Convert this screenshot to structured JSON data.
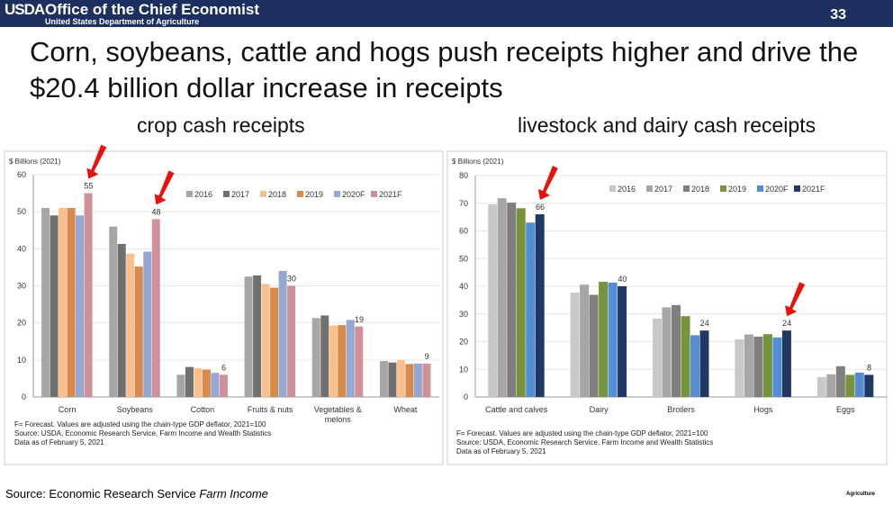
{
  "header": {
    "logo": "USDA",
    "office": "Office of the Chief Economist",
    "department": "United States Department of Agriculture",
    "page_number": "33"
  },
  "title": "Corn, soybeans, cattle and hogs push receipts higher and drive the $20.4 billion dollar increase in receipts",
  "footer": {
    "source_prefix": "Source: Economic Research Service ",
    "source_italic": "Farm Income",
    "corner": "Agriculture"
  },
  "chart_data": [
    {
      "type": "bar",
      "subtitle": "crop cash receipts",
      "ylabel": "$ Billions (2021)",
      "ylim": [
        0,
        60
      ],
      "yticks": [
        0,
        10,
        20,
        30,
        40,
        50,
        60
      ],
      "grid": true,
      "legend": "top-right",
      "categories": [
        "Corn",
        "Soybeans",
        "Cotton",
        "Fruits & nuts",
        "Vegetables & melons",
        "Wheat"
      ],
      "series": [
        {
          "name": "2016",
          "color": "#a6a6a6",
          "values": [
            51,
            46,
            6,
            32.5,
            21.3,
            9.7
          ]
        },
        {
          "name": "2017",
          "color": "#707070",
          "values": [
            49,
            41.3,
            8.1,
            32.8,
            22,
            9.3
          ]
        },
        {
          "name": "2018",
          "color": "#f9c08b",
          "values": [
            51,
            38.7,
            7.8,
            30.5,
            19.3,
            10
          ]
        },
        {
          "name": "2019",
          "color": "#d9894a",
          "values": [
            51,
            35.2,
            7.4,
            29.5,
            19.4,
            8.9
          ]
        },
        {
          "name": "2020F",
          "color": "#93a9d1",
          "values": [
            49,
            39.2,
            6.5,
            34,
            20.8,
            9
          ]
        },
        {
          "name": "2021F",
          "color": "#d09097",
          "values": [
            55,
            48,
            6,
            30,
            19,
            9
          ]
        }
      ],
      "data_labels": [
        "55",
        "48",
        "6",
        "30",
        "19",
        "9"
      ],
      "arrows_on": [
        "Corn",
        "Soybeans"
      ],
      "notes": [
        "F= Forecast.  Values are adjusted using the chain-type GDP deflator, 2021=100",
        "Source: USDA, Economic Research Service, Farm Income and Wealth Statistics",
        "Data as of February 5, 2021"
      ]
    },
    {
      "type": "bar",
      "subtitle": "livestock and dairy cash receipts",
      "ylabel": "$ Billions (2021)",
      "ylim": [
        0,
        80
      ],
      "yticks": [
        0,
        10,
        20,
        30,
        40,
        50,
        60,
        70,
        80
      ],
      "grid": true,
      "legend": "top-right",
      "categories": [
        "Cattle and calves",
        "Dairy",
        "Broilers",
        "Hogs",
        "Eggs"
      ],
      "series": [
        {
          "name": "2016",
          "color": "#c8c8c8",
          "values": [
            69.6,
            37.7,
            28.3,
            20.8,
            7.2
          ]
        },
        {
          "name": "2017",
          "color": "#a6a6a6",
          "values": [
            71.8,
            40.6,
            32.4,
            22.6,
            8.2
          ]
        },
        {
          "name": "2018",
          "color": "#7f7f7f",
          "values": [
            70.2,
            36.9,
            33.2,
            21.8,
            11.1
          ]
        },
        {
          "name": "2019",
          "color": "#77933c",
          "values": [
            68.2,
            41.6,
            29.2,
            22.7,
            8
          ]
        },
        {
          "name": "2020F",
          "color": "#558ed5",
          "values": [
            63,
            41.3,
            22.3,
            21.5,
            8.8
          ]
        },
        {
          "name": "2021F",
          "color": "#1f3864",
          "values": [
            66,
            40,
            24,
            24,
            8
          ]
        }
      ],
      "data_labels": [
        "66",
        "40",
        "24",
        "24",
        "8"
      ],
      "arrows_on": [
        "Cattle and calves",
        "Hogs"
      ],
      "notes": [
        "F= Forecast.  Values are adjusted using the chain-type GDP deflator, 2021=100",
        "Source: USDA, Economic Research Service, Farm Income and Wealth Statistics",
        "Data as of February 5, 2021"
      ]
    }
  ]
}
